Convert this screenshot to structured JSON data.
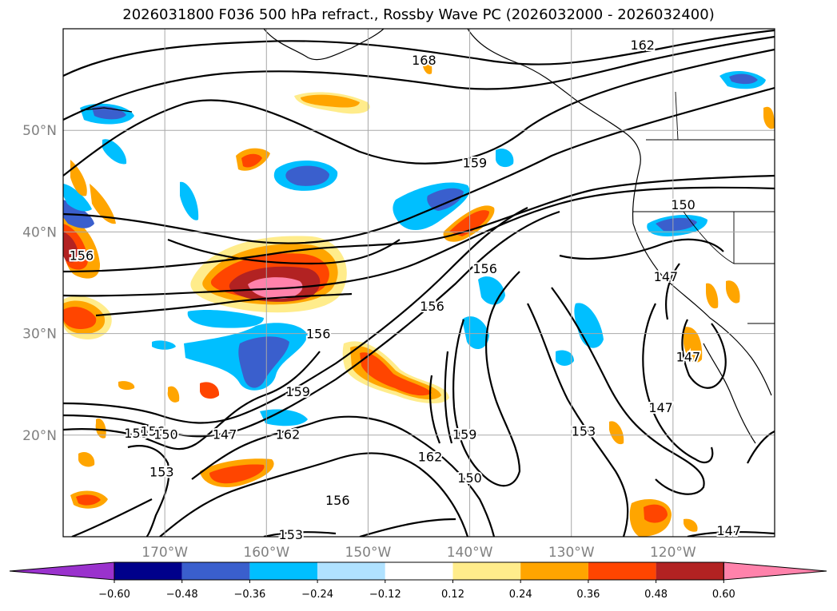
{
  "chart_data": {
    "type": "contour",
    "title": "2026031800 F036 500 hPa refract., Rossby Wave PC (2026032000 - 2026032400)",
    "lon_range": [
      -180,
      -110
    ],
    "lat_range": [
      10,
      60
    ],
    "lat_ticks": [
      {
        "value": 50,
        "label": "50°N"
      },
      {
        "value": 40,
        "label": "40°N"
      },
      {
        "value": 30,
        "label": "30°N"
      },
      {
        "value": 20,
        "label": "20°N"
      }
    ],
    "lon_ticks": [
      {
        "value": -170,
        "label": "170°W"
      },
      {
        "value": -160,
        "label": "160°W"
      },
      {
        "value": -150,
        "label": "150°W"
      },
      {
        "value": -140,
        "label": "140°W"
      },
      {
        "value": -130,
        "label": "130°W"
      },
      {
        "value": -120,
        "label": "120°W"
      }
    ],
    "grid": true,
    "colorbar": {
      "levels": [
        -0.6,
        -0.48,
        -0.36,
        -0.24,
        -0.12,
        0.12,
        0.24,
        0.36,
        0.48,
        0.6
      ],
      "tick_labels": [
        "−0.60",
        "−0.48",
        "−0.36",
        "−0.24",
        "−0.12",
        "0.12",
        "0.24",
        "0.36",
        "0.48",
        "0.60"
      ],
      "colors": [
        "#9a32cd",
        "#00008b",
        "#3a5fcd",
        "#00bfff",
        "#b0e2ff",
        "#ffffff",
        "#ffec8b",
        "#ffa500",
        "#ff4500",
        "#b22222",
        "#ff82ab"
      ],
      "extend": "both"
    },
    "contour_labels": [
      {
        "text": "168",
        "lon": -144.5,
        "lat": 56.8
      },
      {
        "text": "162",
        "lon": -123.0,
        "lat": 58.3
      },
      {
        "text": "159",
        "lon": -139.5,
        "lat": 46.7
      },
      {
        "text": "150",
        "lon": -119.0,
        "lat": 42.6
      },
      {
        "text": "147",
        "lon": -120.7,
        "lat": 35.5
      },
      {
        "text": "147",
        "lon": -118.5,
        "lat": 27.6
      },
      {
        "text": "147",
        "lon": -121.2,
        "lat": 22.6
      },
      {
        "text": "147",
        "lon": -114.5,
        "lat": 10.5
      },
      {
        "text": "156",
        "lon": -178.2,
        "lat": 37.6
      },
      {
        "text": "156",
        "lon": -138.5,
        "lat": 36.3
      },
      {
        "text": "156",
        "lon": -143.7,
        "lat": 32.6
      },
      {
        "text": "156",
        "lon": -154.9,
        "lat": 29.9
      },
      {
        "text": "159",
        "lon": -156.9,
        "lat": 24.2
      },
      {
        "text": "162",
        "lon": -157.9,
        "lat": 20.0
      },
      {
        "text": "162",
        "lon": -143.9,
        "lat": 17.8
      },
      {
        "text": "159",
        "lon": -140.5,
        "lat": 20.0
      },
      {
        "text": "150",
        "lon": -140.0,
        "lat": 15.7
      },
      {
        "text": "153",
        "lon": -128.8,
        "lat": 20.3
      },
      {
        "text": "159",
        "lon": -172.8,
        "lat": 20.1
      },
      {
        "text": "156",
        "lon": -171.2,
        "lat": 20.3
      },
      {
        "text": "150",
        "lon": -169.9,
        "lat": 20.0
      },
      {
        "text": "147",
        "lon": -164.1,
        "lat": 20.0
      },
      {
        "text": "153",
        "lon": -170.3,
        "lat": 16.3
      },
      {
        "text": "156",
        "lon": -153.0,
        "lat": 13.5
      },
      {
        "text": "153",
        "lon": -157.6,
        "lat": 10.1
      }
    ]
  }
}
